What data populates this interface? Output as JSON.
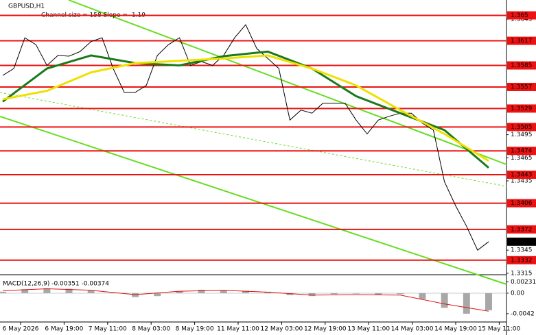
{
  "chart_data": {
    "type": "line",
    "title": "GBPUSD,H1",
    "subtitle": "Channel size = 158 Slope = -1.19",
    "xlabels": [
      "6 May 2026",
      "6 May 19:00",
      "7 May 11:00",
      "8 May 03:00",
      "8 May 19:00",
      "11 May 11:00",
      "12 May 03:00",
      "12 May 19:00",
      "13 May 11:00",
      "14 May 03:00",
      "14 May 19:00",
      "15 May 11:00"
    ],
    "ylim": [
      1.3314,
      1.367
    ],
    "yticks": [
      1.3645,
      1.3495,
      1.3465,
      1.3435,
      1.3345,
      1.3315
    ],
    "levels": [
      1.365,
      1.3617,
      1.3585,
      1.3557,
      1.3529,
      1.3505,
      1.3474,
      1.3443,
      1.3406,
      1.3372,
      1.3332
    ],
    "level_color": "#ee1111",
    "last_price": 1.3356,
    "series": [
      {
        "color": "#000000",
        "values": [
          1.3572,
          1.3581,
          1.3621,
          1.3612,
          1.3585,
          1.3598,
          1.3597,
          1.3603,
          1.3616,
          1.3621,
          1.3581,
          1.355,
          1.355,
          1.3559,
          1.3598,
          1.3612,
          1.3621,
          1.3585,
          1.359,
          1.3585,
          1.3598,
          1.3621,
          1.3638,
          1.3607,
          1.3594,
          1.3581,
          1.3514,
          1.3527,
          1.3523,
          1.3536,
          1.3536,
          1.3536,
          1.3514,
          1.3496,
          1.3514,
          1.3519,
          1.3523,
          1.3523,
          1.351,
          1.3501,
          1.3434,
          1.3403,
          1.3376,
          1.3345,
          1.3356
        ]
      },
      {
        "color": "#1a7a1a",
        "values": [
          1.3538,
          1.3581,
          1.3598,
          1.3588,
          1.3585,
          1.3597,
          1.3603,
          1.3581,
          1.3545,
          1.3523,
          1.3501,
          1.3452
        ]
      },
      {
        "color": "#f0e000",
        "values": [
          1.3541,
          1.3552,
          1.3576,
          1.3588,
          1.3591,
          1.3594,
          1.3598,
          1.3581,
          1.3559,
          1.3527,
          1.3496,
          1.3461
        ]
      }
    ],
    "macd": {
      "label": "MACD(12,26,9) -0.00351 -0.00374",
      "ylim": [
        -0.0059,
        0.0035
      ],
      "yticks": [
        {
          "value": 0.00231,
          "label": "0.00231"
        },
        {
          "value": 0,
          "label": "0.00"
        },
        {
          "value": -0.0042,
          "label": "-0.0042"
        }
      ],
      "histogram": [
        0.0003,
        0.0008,
        0.001,
        0.0009,
        0.0006,
        0.0001,
        -0.0008,
        -0.0006,
        0.0004,
        0.0007,
        0.0006,
        0.0005,
        0.0003,
        -0.0004,
        -0.0006,
        -0.0002,
        -0.0001,
        -0.0003,
        -0.0002,
        -0.0012,
        -0.003,
        -0.0042,
        -0.0035
      ],
      "histogram_color": "#a8a8a8",
      "signal": [
        0.0005,
        0.0009,
        0.0006,
        -0.0003,
        0.0004,
        0.0006,
        0.0002,
        -0.0004,
        -0.0003,
        -0.0004,
        -0.0022,
        -0.0037
      ],
      "signal_color": "#dd1111"
    }
  }
}
